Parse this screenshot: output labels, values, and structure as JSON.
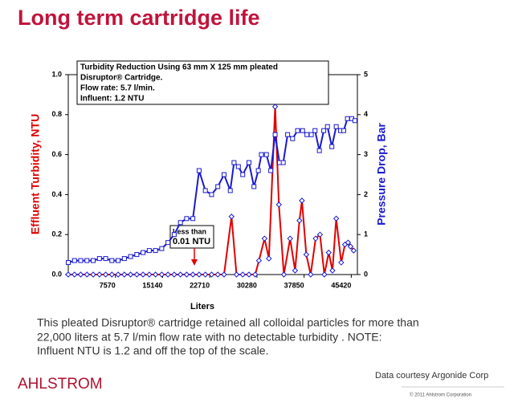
{
  "chart_data": {
    "type": "line",
    "title": "Long term cartridge life",
    "annotation_box": [
      "Turbidity Reduction Using 63 mm X  125 mm pleated",
      "Disruptor® Cartridge.",
      "Flow rate: 5.7 l/min.",
      "Influent: 1.2 NTU"
    ],
    "callout": [
      "Less than",
      "0.01 NTU"
    ],
    "xlabel": "Liters",
    "ylabel": "Effluent Turbidity, NTU",
    "y2label": "Pressure Drop, Bar",
    "xlim": [
      0,
      46400
    ],
    "xticks": [
      7570,
      15140,
      22710,
      30280,
      37850,
      45420
    ],
    "ylim": [
      0,
      1
    ],
    "yticks": [
      {
        "value": 0,
        "label": "0.0"
      },
      0.2,
      0.4,
      0.6,
      0.8,
      {
        "value": 1,
        "label": "1.0"
      }
    ],
    "y2lim": [
      0,
      5
    ],
    "y2ticks": [
      0,
      1,
      2,
      3,
      4,
      5
    ],
    "series": [
      {
        "color": "#e00000",
        "marker_color": "#1a1ad0",
        "marker": "diamond",
        "x": [
          0,
          1000,
          2000,
          3000,
          4000,
          5000,
          6000,
          7000,
          8000,
          9000,
          10000,
          11000,
          12000,
          13000,
          14000,
          15000,
          16000,
          17000,
          18000,
          19000,
          20000,
          21000,
          22000,
          23000,
          24000,
          25000,
          26200,
          27000,
          28000,
          29000,
          30000,
          30600,
          31500,
          32200,
          33200,
          33800,
          34600,
          35600,
          36400,
          37100,
          37500,
          38200,
          38900,
          39700,
          40400,
          41100,
          41800,
          42400,
          43000,
          43800,
          44400,
          44900,
          45300,
          45800
        ],
        "values": [
          0,
          0,
          0,
          0,
          0,
          0,
          0,
          0,
          0,
          0,
          0,
          0,
          0,
          0,
          0,
          0,
          0,
          0,
          0,
          0,
          0,
          0,
          0,
          0,
          0,
          0,
          0.29,
          0,
          0,
          0,
          0,
          0.07,
          0.18,
          0.08,
          0.84,
          0.35,
          0,
          0.18,
          0.02,
          0.27,
          0.37,
          0.1,
          0,
          0.18,
          0.2,
          0,
          0.11,
          0.02,
          0.28,
          0.06,
          0.15,
          0.16,
          0.14,
          0.12
        ]
      },
      {
        "color": "#1a1ad0",
        "marker_color": "#1a1ad0",
        "marker": "square",
        "axis": "y2",
        "x": [
          0,
          1000,
          2000,
          3000,
          4000,
          5000,
          6000,
          7000,
          8000,
          9000,
          10000,
          11000,
          12000,
          13000,
          14000,
          15000,
          16000,
          17000,
          18000,
          19000,
          20000,
          21000,
          22000,
          23000,
          24000,
          25000,
          26000,
          26600,
          27300,
          28000,
          29000,
          29800,
          30500,
          31000,
          31800,
          32500,
          33200,
          33900,
          34500,
          35200,
          36000,
          36800,
          37600,
          38300,
          39000,
          39600,
          40300,
          41000,
          41600,
          42300,
          43000,
          43700,
          44200,
          44800,
          45500,
          46000
        ],
        "values": [
          0.3,
          0.35,
          0.35,
          0.35,
          0.35,
          0.4,
          0.4,
          0.35,
          0.35,
          0.4,
          0.45,
          0.5,
          0.55,
          0.6,
          0.6,
          0.65,
          0.8,
          1.0,
          1.3,
          1.4,
          1.4,
          2.6,
          2.1,
          2.0,
          2.2,
          2.5,
          2.1,
          2.8,
          2.7,
          2.5,
          2.8,
          2.2,
          2.6,
          3.0,
          3.0,
          2.6,
          3.5,
          2.8,
          2.8,
          3.5,
          3.4,
          3.6,
          3.6,
          3.5,
          3.5,
          3.6,
          3.1,
          3.6,
          3.7,
          3.2,
          3.7,
          3.6,
          3.6,
          3.9,
          3.9,
          3.85
        ]
      }
    ],
    "caption": [
      "This pleated Disruptor® cartridge retained all colloidal particles for more than",
      "22,000 liters at 5.7 l/min flow rate with no detectable turbidity . NOTE:",
      "Influent NTU is 1.2 and off the top of the scale."
    ],
    "logo": "AHLSTROM",
    "credit": "Data courtesy Argonide Corp",
    "copyright": "© 2011 Ahlstrom Corporation"
  }
}
